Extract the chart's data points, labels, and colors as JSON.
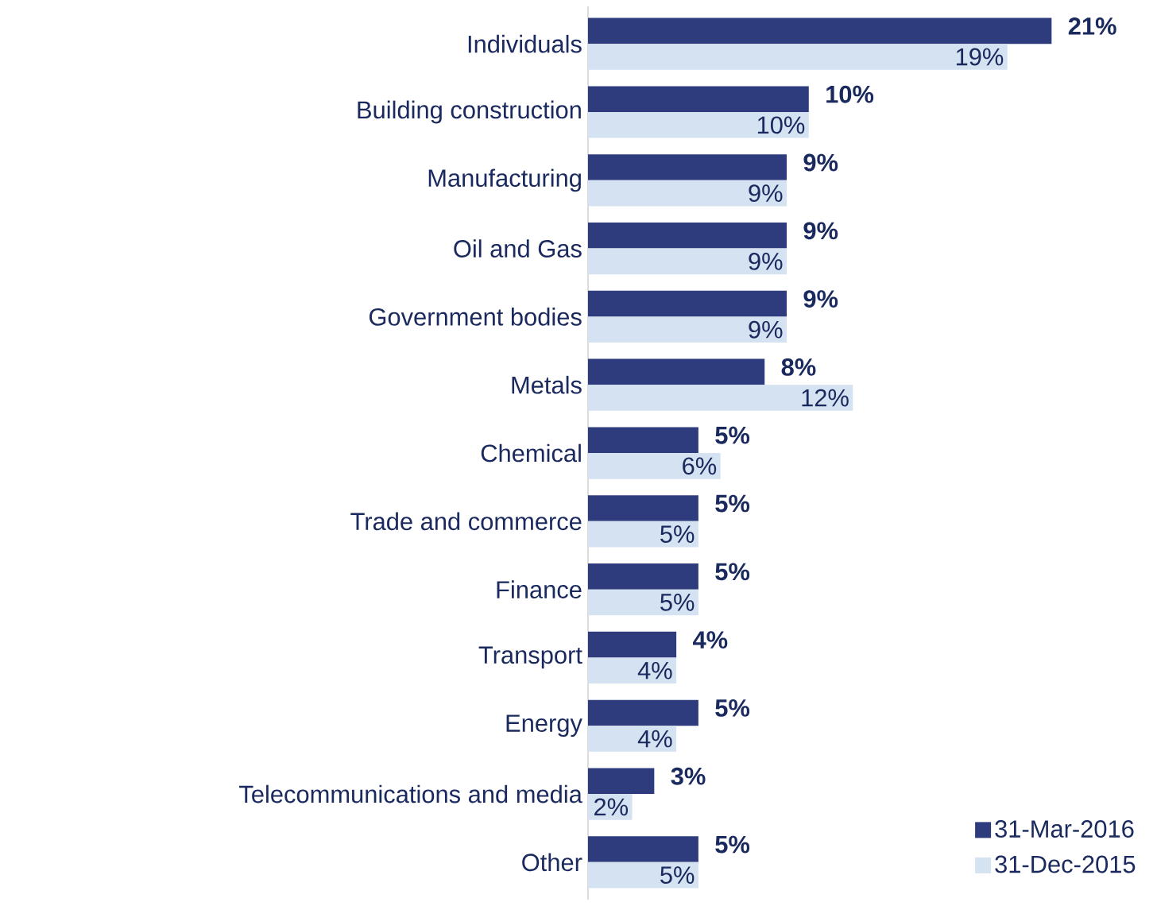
{
  "chart_data": {
    "type": "bar",
    "orientation": "horizontal",
    "categories": [
      "Individuals",
      "Building construction",
      "Manufacturing",
      "Oil and Gas",
      "Government bodies",
      "Metals",
      "Chemical",
      "Trade and commerce",
      "Finance",
      "Transport",
      "Energy",
      "Telecommunications and media",
      "Other"
    ],
    "series": [
      {
        "name": "31-Mar-2016",
        "color": "#2e3b7c",
        "values": [
          21,
          10,
          9,
          9,
          9,
          8,
          5,
          5,
          5,
          4,
          5,
          3,
          5
        ],
        "value_labels": [
          "21%",
          "10%",
          "9%",
          "9%",
          "9%",
          "8%",
          "5%",
          "5%",
          "5%",
          "4%",
          "5%",
          "3%",
          "5%"
        ]
      },
      {
        "name": "31-Dec-2015",
        "color": "#d5e2f2",
        "values": [
          19,
          10,
          9,
          9,
          9,
          12,
          6,
          5,
          5,
          4,
          4,
          2,
          5
        ],
        "value_labels": [
          "19%",
          "10%",
          "9%",
          "9%",
          "9%",
          "12%",
          "6%",
          "5%",
          "5%",
          "4%",
          "4%",
          "2%",
          "5%"
        ]
      }
    ],
    "legend": "bottom right"
  }
}
